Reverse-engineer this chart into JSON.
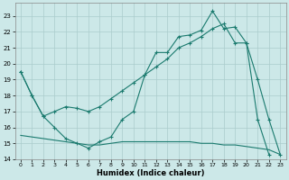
{
  "xlabel": "Humidex (Indice chaleur)",
  "bg_color": "#cce8e8",
  "line_color": "#1a7a6e",
  "grid_color": "#aacccc",
  "xlim": [
    -0.5,
    23.5
  ],
  "ylim": [
    14,
    23.8
  ],
  "yticks": [
    14,
    15,
    16,
    17,
    18,
    19,
    20,
    21,
    22,
    23
  ],
  "xticks": [
    0,
    1,
    2,
    3,
    4,
    5,
    6,
    7,
    8,
    9,
    10,
    11,
    12,
    13,
    14,
    15,
    16,
    17,
    18,
    19,
    20,
    21,
    22,
    23
  ],
  "series1_x": [
    0,
    1,
    2,
    3,
    4,
    5,
    6,
    7,
    8,
    9,
    10,
    11,
    12,
    13,
    14,
    15,
    16,
    17,
    18,
    19,
    20,
    21,
    22,
    23
  ],
  "series1_y": [
    19.5,
    18.0,
    16.7,
    16.0,
    15.3,
    15.0,
    14.7,
    15.1,
    15.4,
    16.5,
    17.0,
    19.3,
    20.7,
    20.7,
    21.7,
    21.8,
    22.1,
    23.3,
    22.2,
    22.3,
    21.3,
    19.0,
    16.5,
    14.3
  ],
  "series2_x": [
    0,
    1,
    2,
    3,
    4,
    5,
    6,
    7,
    8,
    9,
    10,
    11,
    12,
    13,
    14,
    15,
    16,
    17,
    18,
    19,
    20,
    21,
    22,
    23
  ],
  "series2_y": [
    19.5,
    18.0,
    16.7,
    17.0,
    17.3,
    17.2,
    17.0,
    17.3,
    17.8,
    18.3,
    18.8,
    19.3,
    19.8,
    20.3,
    21.0,
    21.3,
    21.7,
    22.2,
    22.5,
    21.3,
    21.3,
    16.5,
    14.3,
    null
  ],
  "series3_x": [
    0,
    1,
    2,
    3,
    4,
    5,
    6,
    7,
    8,
    9,
    10,
    11,
    12,
    13,
    14,
    15,
    16,
    17,
    18,
    19,
    20,
    21,
    22,
    23
  ],
  "series3_y": [
    15.5,
    15.4,
    15.3,
    15.2,
    15.1,
    15.0,
    14.9,
    14.9,
    15.0,
    15.1,
    15.1,
    15.1,
    15.1,
    15.1,
    15.1,
    15.1,
    15.0,
    15.0,
    14.9,
    14.9,
    14.8,
    14.7,
    14.6,
    14.3
  ]
}
